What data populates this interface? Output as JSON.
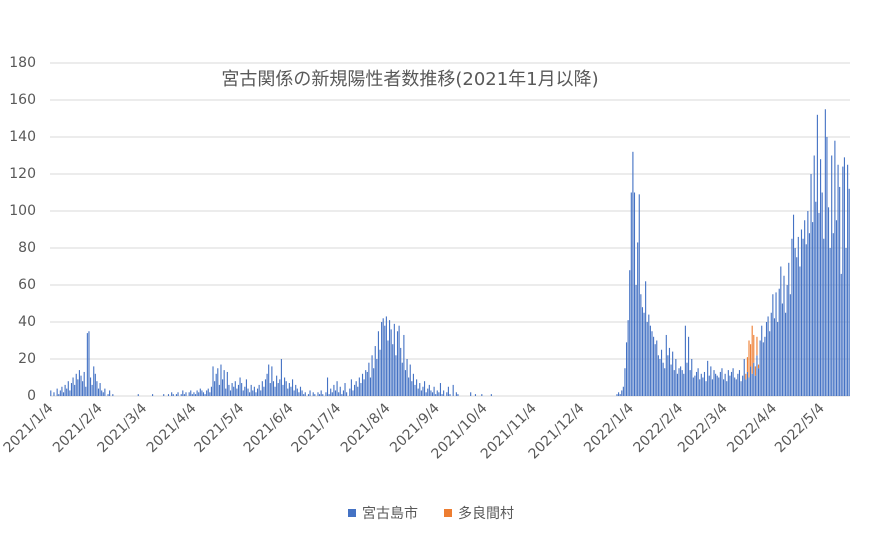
{
  "chart_data": {
    "type": "bar",
    "title": "宮古関係の新規陽性者数推移(2021年1月以降)",
    "ylim": [
      0,
      180
    ],
    "yticks": [
      0,
      20,
      40,
      60,
      80,
      100,
      120,
      140,
      160,
      180
    ],
    "grid": true,
    "stacked": true,
    "legend": "bottom",
    "categories": [
      "2021/1/4",
      null,
      null,
      null,
      null,
      null,
      null,
      null,
      null,
      null,
      null,
      null,
      null,
      null,
      null,
      null,
      null,
      null,
      null,
      null,
      null,
      null,
      null,
      null,
      null,
      null,
      null,
      null,
      null,
      null,
      null,
      "2021/2/4",
      null,
      null,
      null,
      null,
      null,
      null,
      null,
      null,
      null,
      null,
      null,
      null,
      null,
      null,
      null,
      null,
      null,
      null,
      null,
      null,
      null,
      null,
      null,
      null,
      null,
      null,
      null,
      "2021/3/4",
      null,
      null,
      null,
      null,
      null,
      null,
      null,
      null,
      null,
      null,
      null,
      null,
      null,
      null,
      null,
      null,
      null,
      null,
      null,
      null,
      null,
      null,
      null,
      null,
      null,
      null,
      null,
      null,
      null,
      null,
      "2021/4/4",
      null,
      null,
      null,
      null,
      null,
      null,
      null,
      null,
      null,
      null,
      null,
      null,
      null,
      null,
      null,
      null,
      null,
      null,
      null,
      null,
      null,
      null,
      null,
      null,
      null,
      null,
      null,
      null,
      null,
      "2021/5/4",
      null,
      null,
      null,
      null,
      null,
      null,
      null,
      null,
      null,
      null,
      null,
      null,
      null,
      null,
      null,
      null,
      null,
      null,
      null,
      null,
      null,
      null,
      null,
      null,
      null,
      null,
      null,
      null,
      null,
      null,
      "2021/6/4",
      null,
      null,
      null,
      null,
      null,
      null,
      null,
      null,
      null,
      null,
      null,
      null,
      null,
      null,
      null,
      null,
      null,
      null,
      null,
      null,
      null,
      null,
      null,
      null,
      null,
      null,
      null,
      null,
      null,
      "2021/7/4",
      null,
      null,
      null,
      null,
      null,
      null,
      null,
      null,
      null,
      null,
      null,
      null,
      null,
      null,
      null,
      null,
      null,
      null,
      null,
      null,
      null,
      null,
      null,
      null,
      null,
      null,
      null,
      null,
      null,
      null,
      "2021/8/4",
      null,
      null,
      null,
      null,
      null,
      null,
      null,
      null,
      null,
      null,
      null,
      null,
      null,
      null,
      null,
      null,
      null,
      null,
      null,
      null,
      null,
      null,
      null,
      null,
      null,
      null,
      null,
      null,
      null,
      null,
      "2021/9/4",
      null,
      null,
      null,
      null,
      null,
      null,
      null,
      null,
      null,
      null,
      null,
      null,
      null,
      null,
      null,
      null,
      null,
      null,
      null,
      null,
      null,
      null,
      null,
      null,
      null,
      null,
      null,
      null,
      null,
      "2021/10/4",
      null,
      null,
      null,
      null,
      null,
      null,
      null,
      null,
      null,
      null,
      null,
      null,
      null,
      null,
      null,
      null,
      null,
      null,
      null,
      null,
      null,
      null,
      null,
      null,
      null,
      null,
      null,
      null,
      null,
      null,
      "2021/11/4",
      null,
      null,
      null,
      null,
      null,
      null,
      null,
      null,
      null,
      null,
      null,
      null,
      null,
      null,
      null,
      null,
      null,
      null,
      null,
      null,
      null,
      null,
      null,
      null,
      null,
      null,
      null,
      null,
      null,
      "2021/12/4",
      null,
      null,
      null,
      null,
      null,
      null,
      null,
      null,
      null,
      null,
      null,
      null,
      null,
      null,
      null,
      null,
      null,
      null,
      null,
      null,
      null,
      null,
      null,
      null,
      null,
      null,
      null,
      null,
      null,
      null,
      "2022/1/4",
      null,
      null,
      null,
      null,
      null,
      null,
      null,
      null,
      null,
      null,
      null,
      null,
      null,
      null,
      null,
      null,
      null,
      null,
      null,
      null,
      null,
      null,
      null,
      null,
      null,
      null,
      null,
      null,
      null,
      null,
      "2022/2/4",
      null,
      null,
      null,
      null,
      null,
      null,
      null,
      null,
      null,
      null,
      null,
      null,
      null,
      null,
      null,
      null,
      null,
      null,
      null,
      null,
      null,
      null,
      null,
      null,
      null,
      null,
      null,
      "2022/3/4",
      null,
      null,
      null,
      null,
      null,
      null,
      null,
      null,
      null,
      null,
      null,
      null,
      null,
      null,
      null,
      null,
      null,
      null,
      null,
      null,
      null,
      null,
      null,
      null,
      null,
      null,
      null,
      null,
      null,
      null,
      "2022/4/4",
      null,
      null,
      null,
      null,
      null,
      null,
      null,
      null,
      null,
      null,
      null,
      null,
      null,
      null,
      null,
      null,
      null,
      null,
      null,
      null,
      null,
      null,
      null,
      null,
      null,
      null,
      null,
      null,
      null,
      "2022/5/4",
      null,
      null,
      null,
      null,
      null,
      null,
      null,
      null,
      null,
      null,
      null,
      null,
      null,
      null,
      null,
      null,
      null
    ],
    "series": [
      {
        "name": "宮古島市",
        "color": "#4472c4",
        "values": [
          3,
          0,
          2,
          0,
          4,
          1,
          3,
          5,
          2,
          6,
          4,
          8,
          3,
          7,
          10,
          6,
          12,
          9,
          14,
          11,
          8,
          13,
          5,
          34,
          35,
          10,
          6,
          16,
          12,
          8,
          4,
          7,
          3,
          2,
          4,
          0,
          1,
          3,
          0,
          1,
          0,
          0,
          0,
          0,
          0,
          0,
          0,
          0,
          0,
          0,
          0,
          0,
          0,
          0,
          0,
          1,
          0,
          0,
          0,
          0,
          0,
          0,
          0,
          0,
          1,
          0,
          0,
          0,
          0,
          0,
          0,
          1,
          0,
          0,
          1,
          0,
          2,
          1,
          0,
          1,
          2,
          0,
          1,
          3,
          1,
          2,
          0,
          2,
          3,
          1,
          2,
          1,
          3,
          2,
          4,
          3,
          2,
          1,
          3,
          4,
          2,
          5,
          16,
          8,
          12,
          15,
          6,
          17,
          9,
          14,
          4,
          13,
          6,
          3,
          7,
          5,
          8,
          4,
          6,
          10,
          7,
          3,
          5,
          9,
          4,
          2,
          6,
          3,
          5,
          2,
          4,
          6,
          3,
          8,
          5,
          9,
          12,
          17,
          7,
          16,
          8,
          5,
          11,
          7,
          9,
          20,
          6,
          10,
          8,
          4,
          7,
          5,
          9,
          3,
          6,
          4,
          2,
          5,
          3,
          1,
          2,
          0,
          1,
          3,
          0,
          2,
          1,
          0,
          2,
          1,
          3,
          1,
          0,
          2,
          10,
          1,
          4,
          2,
          6,
          3,
          8,
          2,
          5,
          1,
          3,
          7,
          2,
          0,
          4,
          9,
          3,
          6,
          8,
          5,
          10,
          7,
          12,
          9,
          14,
          13,
          18,
          10,
          22,
          15,
          27,
          20,
          35,
          25,
          40,
          42,
          38,
          43,
          30,
          41,
          36,
          28,
          39,
          22,
          35,
          38,
          26,
          18,
          33,
          14,
          20,
          10,
          17,
          8,
          12,
          6,
          9,
          4,
          7,
          3,
          5,
          8,
          2,
          4,
          6,
          3,
          2,
          5,
          1,
          3,
          2,
          7,
          1,
          3,
          0,
          2,
          5,
          1,
          0,
          6,
          0,
          2,
          1,
          0,
          0,
          0,
          0,
          0,
          0,
          0,
          2,
          0,
          0,
          1,
          0,
          0,
          0,
          1,
          0,
          0,
          0,
          0,
          0,
          1,
          0,
          0,
          0,
          0,
          0,
          0,
          0,
          0,
          0,
          0,
          0,
          0,
          0,
          0,
          0,
          0,
          0,
          0,
          0,
          0,
          0,
          0,
          0,
          0,
          0,
          0,
          0,
          0,
          0,
          0,
          0,
          0,
          0,
          0,
          0,
          0,
          0,
          0,
          0,
          0,
          0,
          0,
          0,
          0,
          0,
          0,
          0,
          0,
          0,
          0,
          0,
          0,
          0,
          0,
          0,
          0,
          0,
          0,
          0,
          0,
          0,
          0,
          0,
          0,
          0,
          0,
          0,
          0,
          0,
          0,
          0,
          0,
          0,
          0,
          0,
          0,
          0,
          0,
          1,
          2,
          1,
          3,
          5,
          15,
          29,
          41,
          68,
          110,
          132,
          110,
          60,
          83,
          109,
          55,
          48,
          45,
          62,
          40,
          44,
          38,
          35,
          32,
          28,
          30,
          22,
          20,
          25,
          18,
          15,
          33,
          22,
          26,
          17,
          24,
          14,
          20,
          12,
          15,
          16,
          14,
          12,
          38,
          18,
          32,
          14,
          20,
          10,
          11,
          13,
          15,
          9,
          12,
          10,
          13,
          8,
          19,
          11,
          16,
          9,
          14,
          12,
          11,
          10,
          13,
          15,
          9,
          12,
          8,
          14,
          11,
          13,
          15,
          10,
          9,
          12,
          14,
          8,
          11,
          20,
          9,
          13,
          10,
          16,
          12,
          18,
          11,
          22,
          15,
          30,
          38,
          29,
          32,
          40,
          43,
          35,
          45,
          55,
          42,
          56,
          40,
          58,
          70,
          50,
          65,
          45,
          60,
          72,
          55,
          85,
          98,
          80,
          75,
          86,
          70,
          90,
          85,
          95,
          82,
          100,
          88,
          120,
          94,
          130,
          105,
          152,
          99,
          128,
          110,
          85,
          155,
          140,
          102,
          80,
          130,
          88,
          138,
          95,
          125,
          113,
          66,
          124,
          129,
          80,
          125,
          112
        ]
      },
      {
        "name": "多良間村",
        "color": "#ed7d31",
        "values": [
          0,
          0,
          0,
          0,
          0,
          0,
          0,
          0,
          0,
          0,
          0,
          0,
          0,
          0,
          0,
          0,
          0,
          0,
          0,
          0,
          0,
          0,
          0,
          0,
          0,
          0,
          0,
          0,
          0,
          0,
          0,
          0,
          0,
          0,
          0,
          0,
          0,
          0,
          0,
          0,
          0,
          0,
          0,
          0,
          0,
          0,
          0,
          0,
          0,
          0,
          0,
          0,
          0,
          0,
          0,
          0,
          0,
          0,
          0,
          0,
          0,
          0,
          0,
          0,
          0,
          0,
          0,
          0,
          0,
          0,
          0,
          0,
          0,
          0,
          0,
          0,
          0,
          0,
          0,
          0,
          0,
          0,
          0,
          0,
          0,
          0,
          0,
          0,
          0,
          0,
          0,
          0,
          0,
          0,
          0,
          0,
          0,
          0,
          0,
          0,
          0,
          0,
          0,
          0,
          0,
          0,
          0,
          0,
          0,
          0,
          0,
          0,
          0,
          0,
          0,
          0,
          0,
          0,
          0,
          0,
          0,
          0,
          0,
          0,
          0,
          0,
          0,
          0,
          0,
          0,
          0,
          0,
          0,
          0,
          0,
          0,
          0,
          0,
          0,
          0,
          0,
          0,
          0,
          0,
          0,
          0,
          0,
          0,
          0,
          0,
          0,
          0,
          0,
          0,
          0,
          0,
          0,
          0,
          0,
          0,
          0,
          0,
          0,
          0,
          0,
          0,
          0,
          0,
          0,
          0,
          0,
          0,
          0,
          0,
          0,
          0,
          0,
          0,
          0,
          0,
          0,
          0,
          0,
          0,
          0,
          0,
          0,
          0,
          0,
          0,
          0,
          0,
          0,
          0,
          0,
          0,
          0,
          0,
          0,
          0,
          0,
          0,
          0,
          0,
          0,
          0,
          0,
          0,
          0,
          0,
          0,
          0,
          0,
          0,
          0,
          0,
          0,
          0,
          0,
          0,
          0,
          0,
          0,
          0,
          0,
          0,
          0,
          0,
          0,
          0,
          0,
          0,
          0,
          0,
          0,
          0,
          0,
          0,
          0,
          0,
          0,
          0,
          0,
          0,
          0,
          0,
          0,
          0,
          0,
          0,
          0,
          0,
          0,
          0,
          0,
          0,
          0,
          0,
          0,
          0,
          0,
          0,
          0,
          0,
          0,
          0,
          0,
          0,
          0,
          0,
          0,
          0,
          0,
          0,
          0,
          0,
          0,
          0,
          0,
          0,
          0,
          0,
          0,
          0,
          0,
          0,
          0,
          0,
          0,
          0,
          0,
          0,
          0,
          0,
          0,
          0,
          0,
          0,
          0,
          0,
          0,
          0,
          0,
          0,
          0,
          0,
          0,
          0,
          0,
          0,
          0,
          0,
          0,
          0,
          0,
          0,
          0,
          0,
          0,
          0,
          0,
          0,
          0,
          0,
          0,
          0,
          0,
          0,
          0,
          0,
          0,
          0,
          0,
          0,
          0,
          0,
          0,
          0,
          0,
          0,
          0,
          0,
          0,
          0,
          0,
          0,
          0,
          0,
          0,
          0,
          0,
          0,
          0,
          0,
          0,
          0,
          0,
          0,
          0,
          0,
          0,
          0,
          0,
          0,
          0,
          0,
          0,
          0,
          0,
          0,
          0,
          0,
          0,
          0,
          0,
          0,
          0,
          0,
          0,
          0,
          0,
          0,
          0,
          0,
          0,
          0,
          0,
          0,
          0,
          0,
          0,
          0,
          0,
          0,
          0,
          0,
          0,
          0,
          0,
          0,
          0,
          0,
          0,
          0,
          0,
          0,
          0,
          0,
          0,
          0,
          0,
          0,
          0,
          0,
          0,
          0,
          0,
          0,
          0,
          0,
          0,
          0,
          0,
          0,
          0,
          0,
          0,
          0,
          0,
          0,
          0,
          0,
          0,
          0,
          0,
          0,
          0,
          3,
          8,
          20,
          12,
          26,
          15,
          5,
          10,
          2,
          0,
          0,
          0,
          0,
          0,
          0,
          0,
          0,
          0,
          0,
          0,
          0,
          0,
          0,
          0,
          0,
          0,
          0,
          0,
          0,
          0,
          0,
          0,
          0,
          0,
          0,
          0,
          0,
          0,
          0,
          0,
          0,
          0,
          0,
          0,
          0,
          0,
          0,
          0,
          0,
          0,
          0,
          0,
          0,
          0,
          0,
          0,
          0,
          0,
          0,
          0,
          0,
          0,
          0,
          0,
          0,
          0
        ]
      }
    ]
  }
}
